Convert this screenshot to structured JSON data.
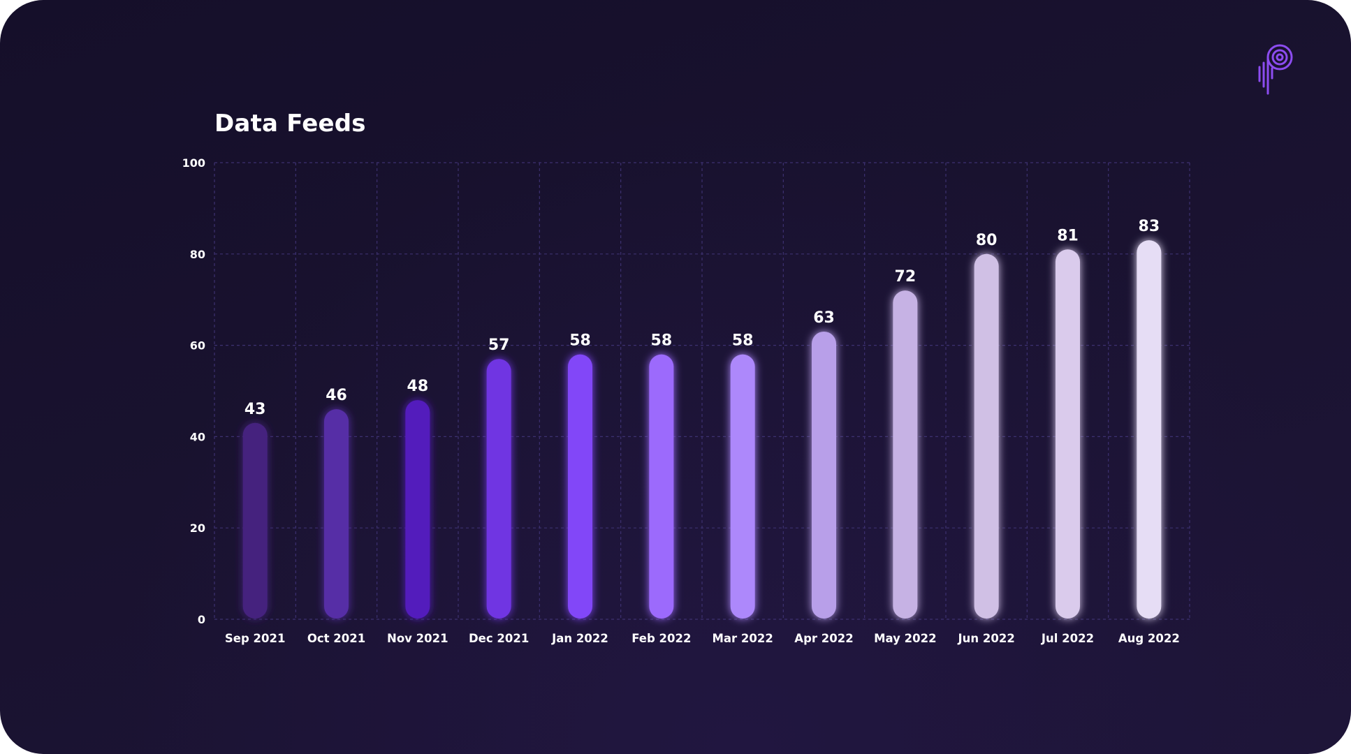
{
  "colors": {
    "background": "#19122f",
    "grid": "#3d3170",
    "text": "#ffffff",
    "logo": "#8c4cf0"
  },
  "logo": {
    "icon": "p-logo-icon"
  },
  "chart_data": {
    "type": "bar",
    "title": "Data Feeds",
    "xlabel": "",
    "ylabel": "",
    "ylim": [
      0,
      100
    ],
    "yticks": [
      0,
      20,
      40,
      60,
      80,
      100
    ],
    "grid": true,
    "data_labels": true,
    "categories": [
      "Sep 2021",
      "Oct 2021",
      "Nov 2021",
      "Dec 2021",
      "Jan 2022",
      "Feb 2022",
      "Mar 2022",
      "Apr 2022",
      "May 2022",
      "Jun 2022",
      "Jul 2022",
      "Aug 2022"
    ],
    "values": [
      43,
      46,
      48,
      57,
      58,
      58,
      58,
      63,
      72,
      80,
      81,
      83
    ],
    "bar_colors": [
      "#45237e",
      "#572fa6",
      "#531cbc",
      "#6f35e2",
      "#8246f8",
      "#9c6bfc",
      "#ad88fb",
      "#b89fe9",
      "#c6b2e4",
      "#d0c0e5",
      "#dacbec",
      "#e6ddf5"
    ]
  }
}
